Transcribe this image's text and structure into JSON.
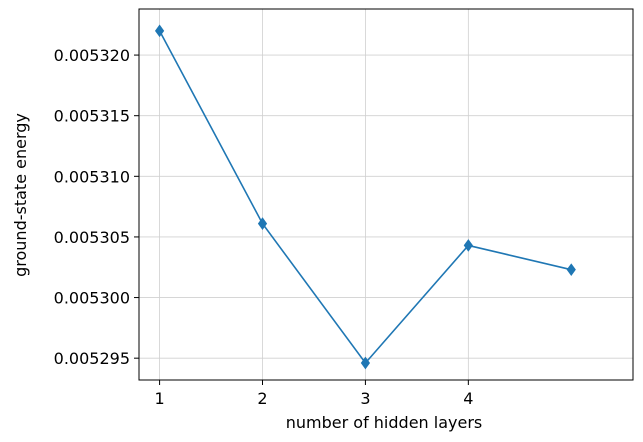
{
  "chart_data": {
    "type": "line",
    "title": "",
    "xlabel": "number of hidden layers",
    "ylabel": "ground-state energy",
    "x": [
      1,
      2,
      3,
      4,
      5
    ],
    "x_ticks": [
      1,
      2,
      3,
      4
    ],
    "x_tick_labels": [
      "1",
      "2",
      "3",
      "4"
    ],
    "y_ticks": [
      0.005295,
      0.0053,
      0.005305,
      0.00531,
      0.005315,
      0.00532
    ],
    "y_tick_labels": [
      "0.005295",
      "0.005300",
      "0.005305",
      "0.005310",
      "0.005315",
      "0.005320"
    ],
    "xlim": [
      0.8,
      5.6
    ],
    "ylim": [
      0.0052932,
      0.0053238
    ],
    "grid": true,
    "series": [
      {
        "name": "ground-state energy",
        "color": "#1f77b4",
        "marker": "diamond",
        "values": [
          0.005322,
          0.0053061,
          0.0052946,
          0.0053043,
          0.0053023
        ]
      }
    ]
  }
}
